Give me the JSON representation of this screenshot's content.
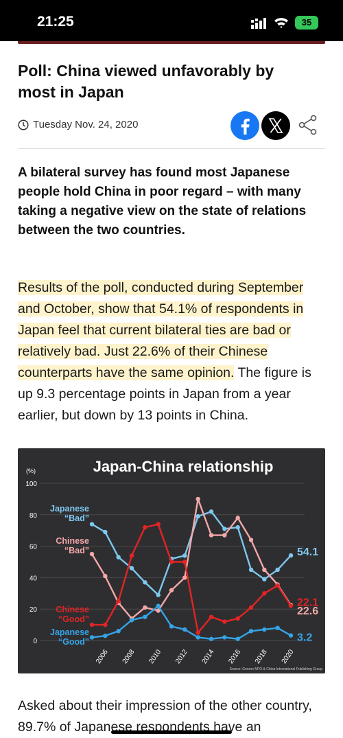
{
  "status": {
    "time": "21:25",
    "battery": "35"
  },
  "article": {
    "title": "Poll: China viewed unfavorably by most in Japan",
    "date": "Tuesday Nov. 24, 2020",
    "lead": "A bilateral survey has found most Japanese people hold China in poor regard – with many taking a negative view on the state of relations between the two countries.",
    "para1_highlight": "Results of the poll, conducted during September and October, show that 54.1% of respondents in Japan feel that current bilateral ties are bad or relatively bad. Just 22.6% of their Chinese counterparts have the same opinion.",
    "para1_rest": " The figure is up 9.3 percentage points in Japan from a year earlier, but down by 13 points in China.",
    "para2": "Asked about their impression of the other country, 89.7% of Japanese respondents have an"
  },
  "share": {
    "facebook": "f",
    "x": "X"
  },
  "chart_data": {
    "type": "line",
    "title": "Japan-China relationship",
    "unit_label": "(%)",
    "source": "Source: Genron NPO & China International Publishing Group",
    "ylim": [
      0,
      100
    ],
    "yticks": [
      "0",
      "20",
      "40",
      "60",
      "80",
      "100"
    ],
    "xticks": [
      "2006",
      "2008",
      "2010",
      "2012",
      "2014",
      "2016",
      "2018",
      "2020"
    ],
    "grid": true,
    "series": [
      {
        "name": "Japanese \"Bad\"",
        "label_lines": [
          "Japanese",
          "“Bad”"
        ],
        "color": "#7ec8ee",
        "x": [
          2005,
          2006,
          2007,
          2008,
          2009,
          2010,
          2011,
          2012,
          2013,
          2014,
          2015,
          2016,
          2017,
          2018,
          2019,
          2020
        ],
        "values": [
          74,
          69,
          53,
          46,
          37,
          29,
          52,
          54,
          79,
          82,
          71,
          72,
          45,
          39,
          45,
          54.1
        ],
        "end_label": "54.1"
      },
      {
        "name": "Chinese \"Bad\"",
        "label_lines": [
          "Chinese",
          "“Bad”"
        ],
        "color": "#f3a8a8",
        "x": [
          2005,
          2006,
          2007,
          2008,
          2009,
          2010,
          2011,
          2012,
          2013,
          2014,
          2015,
          2016,
          2017,
          2018,
          2019,
          2020
        ],
        "values": [
          55,
          41,
          24,
          14,
          21,
          19,
          32,
          40,
          90,
          67,
          67,
          78,
          64,
          45,
          35.6,
          22.6
        ],
        "end_label": "22.6"
      },
      {
        "name": "Chinese \"Good\"",
        "label_lines": [
          "Chinese",
          "“Good”"
        ],
        "color": "#e32424",
        "x": [
          2005,
          2006,
          2007,
          2008,
          2009,
          2010,
          2011,
          2012,
          2013,
          2014,
          2015,
          2016,
          2017,
          2018,
          2019,
          2020
        ],
        "values": [
          10,
          10,
          25,
          54,
          72,
          74,
          50,
          50,
          5,
          15,
          12,
          14,
          21,
          30,
          35,
          22.1
        ],
        "end_label": "22.1"
      },
      {
        "name": "Japanese \"Good\"",
        "label_lines": [
          "Japanese",
          "“Good”"
        ],
        "color": "#35a4e6",
        "x": [
          2005,
          2006,
          2007,
          2008,
          2009,
          2010,
          2011,
          2012,
          2013,
          2014,
          2015,
          2016,
          2017,
          2018,
          2019,
          2020
        ],
        "values": [
          2,
          3,
          6,
          13,
          15,
          22,
          9,
          7,
          2,
          1,
          2,
          1,
          6,
          7,
          8,
          3.2
        ],
        "end_label": "3.2"
      }
    ]
  }
}
